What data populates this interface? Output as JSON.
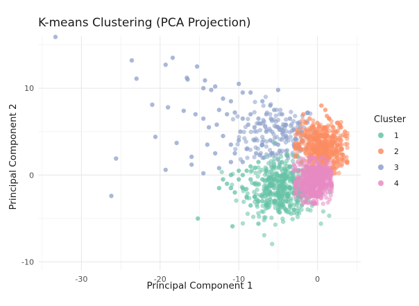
{
  "chart_data": {
    "type": "scatter",
    "title": "K-means Clustering (PCA Projection)",
    "xlabel": "Principal Component 1",
    "ylabel": "Principal Component 2",
    "xlim": [
      -35.5,
      5.5
    ],
    "ylim": [
      -11.0,
      16.0
    ],
    "x_ticks": [
      -30,
      -20,
      -10,
      0
    ],
    "y_ticks": [
      -10,
      0,
      10
    ],
    "grid": true,
    "legend": {
      "title": "Cluster",
      "placement": "right",
      "entries": [
        "1",
        "2",
        "3",
        "4"
      ]
    },
    "series": [
      {
        "name": "1",
        "color": "#66c2a5",
        "points": [
          [
            -6.0,
            -2.0
          ],
          [
            -9.5,
            -1.5
          ],
          [
            -11.0,
            -1.5
          ],
          [
            -10.5,
            -2.0
          ],
          [
            -11.5,
            -1.0
          ],
          [
            -12.5,
            -1.5
          ],
          [
            -10.0,
            -0.5
          ],
          [
            -9.0,
            0.5
          ],
          [
            -8.5,
            -0.5
          ],
          [
            -8.0,
            -2.5
          ],
          [
            -7.5,
            -3.0
          ],
          [
            -7.0,
            -2.5
          ],
          [
            -6.5,
            -3.5
          ],
          [
            -5.5,
            -3.0
          ],
          [
            -5.0,
            -4.0
          ],
          [
            -4.5,
            -3.5
          ],
          [
            -4.0,
            -4.0
          ],
          [
            -3.5,
            -3.5
          ],
          [
            -3.0,
            -4.0
          ],
          [
            -2.5,
            -3.0
          ],
          [
            -2.0,
            -3.5
          ],
          [
            -1.5,
            -3.0
          ],
          [
            -8.5,
            1.0
          ],
          [
            -7.5,
            1.5
          ],
          [
            -6.5,
            0.5
          ],
          [
            -5.5,
            1.0
          ],
          [
            -4.5,
            1.5
          ],
          [
            -3.5,
            1.0
          ],
          [
            -2.5,
            0.5
          ],
          [
            -6.0,
            -1.0
          ],
          [
            -5.0,
            -2.0
          ],
          [
            -4.0,
            -1.5
          ],
          [
            -3.0,
            -2.0
          ],
          [
            -2.0,
            -1.0
          ],
          [
            -1.5,
            -2.0
          ],
          [
            -9.0,
            -2.5
          ],
          [
            -8.0,
            -1.0
          ],
          [
            -7.0,
            -0.5
          ],
          [
            -6.5,
            -1.5
          ],
          [
            -5.5,
            -0.5
          ],
          [
            -4.5,
            0.0
          ],
          [
            -3.5,
            -0.5
          ],
          [
            -2.5,
            -1.5
          ],
          [
            -15.2,
            -5.0
          ],
          [
            -10.8,
            -5.9
          ],
          [
            -7.5,
            -5.6
          ],
          [
            -4.8,
            -4.3
          ],
          [
            -4.0,
            -3.0
          ],
          [
            -7.0,
            -3.0
          ],
          [
            -12.0,
            -0.5
          ],
          [
            -11.0,
            0.0
          ],
          [
            -10.0,
            0.5
          ],
          [
            -9.5,
            0.0
          ],
          [
            -8.5,
            -3.5
          ],
          [
            -6.0,
            -2.8
          ],
          [
            -5.5,
            -1.5
          ],
          [
            -3.8,
            -2.5
          ],
          [
            -3.0,
            -0.8
          ],
          [
            -2.2,
            -2.5
          ],
          [
            -1.8,
            0.5
          ]
        ]
      },
      {
        "name": "2",
        "color": "#fc8d62",
        "points": [
          [
            0.5,
            8.0
          ],
          [
            1.0,
            7.5
          ],
          [
            1.5,
            6.5
          ],
          [
            2.0,
            5.0
          ],
          [
            2.5,
            6.0
          ],
          [
            3.0,
            5.5
          ],
          [
            3.5,
            5.0
          ],
          [
            3.0,
            4.0
          ],
          [
            2.5,
            3.5
          ],
          [
            2.0,
            3.0
          ],
          [
            1.5,
            3.5
          ],
          [
            1.0,
            4.0
          ],
          [
            0.5,
            4.5
          ],
          [
            0.0,
            5.0
          ],
          [
            -0.5,
            5.5
          ],
          [
            -1.0,
            5.0
          ],
          [
            -1.5,
            4.5
          ],
          [
            -2.0,
            4.0
          ],
          [
            -2.5,
            3.5
          ],
          [
            -1.5,
            6.0
          ],
          [
            -1.0,
            6.5
          ],
          [
            0.0,
            6.0
          ],
          [
            1.0,
            5.5
          ],
          [
            2.0,
            4.5
          ],
          [
            0.5,
            3.0
          ],
          [
            0.0,
            2.5
          ],
          [
            -0.5,
            3.0
          ],
          [
            -1.0,
            2.0
          ],
          [
            -1.5,
            2.5
          ],
          [
            -2.0,
            1.5
          ],
          [
            1.5,
            2.0
          ],
          [
            2.0,
            2.5
          ],
          [
            2.5,
            2.0
          ],
          [
            1.0,
            1.5
          ],
          [
            0.5,
            1.0
          ],
          [
            0.0,
            0.5
          ],
          [
            -0.5,
            1.0
          ],
          [
            3.5,
            4.5
          ],
          [
            3.0,
            3.0
          ],
          [
            -1.8,
            7.0
          ],
          [
            -2.8,
            3.0
          ],
          [
            1.2,
            6.8
          ],
          [
            2.8,
            5.8
          ],
          [
            0.2,
            4.0
          ],
          [
            -0.2,
            2.0
          ],
          [
            1.8,
            3.8
          ],
          [
            -1.2,
            3.5
          ],
          [
            0.8,
            2.2
          ]
        ]
      },
      {
        "name": "3",
        "color": "#8da0cb",
        "points": [
          [
            -33.3,
            15.9
          ],
          [
            -23.6,
            13.2
          ],
          [
            -19.3,
            12.7
          ],
          [
            -18.4,
            13.5
          ],
          [
            -15.3,
            12.5
          ],
          [
            -23.0,
            11.1
          ],
          [
            -16.6,
            11.2
          ],
          [
            -16.5,
            11.0
          ],
          [
            -14.3,
            10.9
          ],
          [
            -14.5,
            10.0
          ],
          [
            -13.0,
            10.2
          ],
          [
            -10.0,
            10.5
          ],
          [
            -9.5,
            9.5
          ],
          [
            -8.5,
            9.5
          ],
          [
            -21.0,
            8.1
          ],
          [
            -19.0,
            7.8
          ],
          [
            -17.0,
            7.4
          ],
          [
            -15.5,
            7.0
          ],
          [
            -12.5,
            7.5
          ],
          [
            -11.5,
            7.0
          ],
          [
            -10.5,
            7.2
          ],
          [
            -9.5,
            6.5
          ],
          [
            -8.5,
            7.0
          ],
          [
            -7.5,
            6.5
          ],
          [
            -6.5,
            7.0
          ],
          [
            -5.5,
            7.5
          ],
          [
            -4.5,
            7.0
          ],
          [
            -3.5,
            6.5
          ],
          [
            -2.5,
            6.0
          ],
          [
            -20.6,
            4.4
          ],
          [
            -17.9,
            3.7
          ],
          [
            -16.0,
            2.1
          ],
          [
            -14.0,
            3.5
          ],
          [
            -13.0,
            2.5
          ],
          [
            -12.0,
            4.5
          ],
          [
            -11.0,
            3.5
          ],
          [
            -10.0,
            4.0
          ],
          [
            -9.0,
            3.0
          ],
          [
            -8.0,
            4.0
          ],
          [
            -7.0,
            3.5
          ],
          [
            -6.0,
            4.0
          ],
          [
            -5.0,
            3.5
          ],
          [
            -4.0,
            4.5
          ],
          [
            -3.0,
            3.5
          ],
          [
            -2.0,
            5.0
          ],
          [
            -25.6,
            1.9
          ],
          [
            -19.3,
            0.6
          ],
          [
            -16.0,
            1.2
          ],
          [
            -14.5,
            0.2
          ],
          [
            -12.5,
            0.8
          ],
          [
            -11.0,
            1.5
          ],
          [
            -10.5,
            2.5
          ],
          [
            -9.5,
            1.5
          ],
          [
            -26.2,
            -2.4
          ],
          [
            -8.0,
            5.5
          ],
          [
            -6.5,
            5.0
          ],
          [
            -5.0,
            5.5
          ],
          [
            -4.0,
            5.8
          ],
          [
            -3.0,
            5.2
          ],
          [
            -7.0,
            8.5
          ],
          [
            -6.0,
            8.0
          ],
          [
            -5.0,
            9.8
          ],
          [
            -13.5,
            9.8
          ],
          [
            -12.0,
            8.8
          ],
          [
            -11.0,
            8.5
          ],
          [
            -14.5,
            6.5
          ],
          [
            -13.8,
            5.5
          ],
          [
            -12.8,
            5.8
          ],
          [
            -9.8,
            5.0
          ],
          [
            -8.8,
            5.8
          ],
          [
            -7.8,
            2.5
          ],
          [
            -6.8,
            2.0
          ],
          [
            -5.8,
            2.5
          ],
          [
            -4.8,
            2.8
          ],
          [
            -3.8,
            2.2
          ],
          [
            -2.8,
            4.2
          ],
          [
            -2.2,
            3.0
          ],
          [
            -1.5,
            4.5
          ]
        ]
      },
      {
        "name": "4",
        "color": "#e78ac3",
        "points": [
          [
            -2.5,
            1.5
          ],
          [
            -2.0,
            0.5
          ],
          [
            -1.5,
            1.0
          ],
          [
            -1.0,
            0.0
          ],
          [
            -0.5,
            -0.5
          ],
          [
            0.0,
            -1.0
          ],
          [
            0.5,
            -0.5
          ],
          [
            1.0,
            0.0
          ],
          [
            1.5,
            0.5
          ],
          [
            0.5,
            1.0
          ],
          [
            0.0,
            1.5
          ],
          [
            -0.5,
            2.0
          ],
          [
            -1.0,
            1.5
          ],
          [
            -1.5,
            -0.5
          ],
          [
            -2.0,
            -1.5
          ],
          [
            -1.5,
            -2.0
          ],
          [
            -1.0,
            -2.5
          ],
          [
            -0.5,
            -3.0
          ],
          [
            0.0,
            -2.5
          ],
          [
            0.5,
            -2.0
          ],
          [
            1.0,
            -1.5
          ],
          [
            1.5,
            -1.0
          ],
          [
            -2.5,
            -0.5
          ],
          [
            -3.0,
            0.5
          ],
          [
            -3.0,
            1.2
          ],
          [
            -2.2,
            -2.3
          ],
          [
            -1.2,
            -3.2
          ],
          [
            -0.2,
            -2.0
          ],
          [
            0.8,
            -1.0
          ],
          [
            1.8,
            0.0
          ],
          [
            -1.8,
            0.2
          ],
          [
            -0.8,
            0.8
          ],
          [
            0.2,
            0.2
          ],
          [
            1.2,
            0.8
          ],
          [
            -2.8,
            -1.2
          ],
          [
            -1.3,
            -1.2
          ]
        ]
      }
    ]
  }
}
